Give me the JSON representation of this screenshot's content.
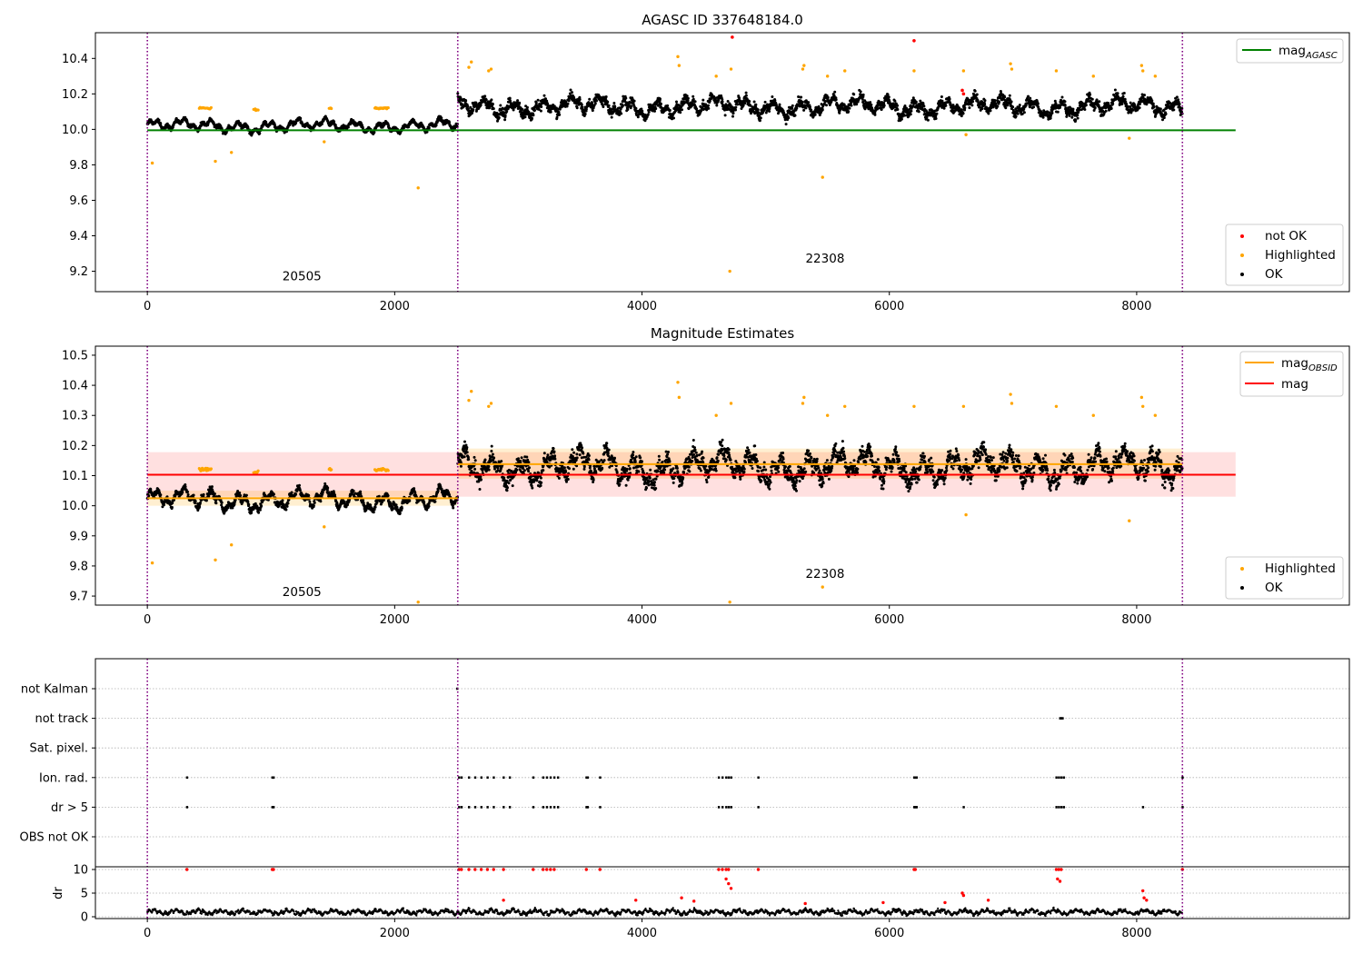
{
  "chart_data": [
    {
      "type": "scatter",
      "title": "AGASC ID 337648184.0",
      "xlabel": "",
      "ylabel": "",
      "xlim": [
        -420,
        9720
      ],
      "ylim": [
        9.085,
        10.545
      ],
      "xticks": [
        0,
        2000,
        4000,
        6000,
        8000
      ],
      "xtick_labels": [
        "0",
        "2000",
        "4000",
        "6000",
        "8000"
      ],
      "yticks": [
        9.2,
        9.4,
        9.6,
        9.8,
        10.0,
        10.2,
        10.4
      ],
      "ytick_labels": [
        "9.2",
        "9.4",
        "9.6",
        "9.8",
        "10.0",
        "10.2",
        "10.4"
      ],
      "obsid_boundaries": [
        0,
        2510,
        8370
      ],
      "obsid_labels": [
        {
          "text": "20505",
          "x": 1250,
          "y": 9.15
        },
        {
          "text": "22308",
          "x": 5480,
          "y": 9.25
        }
      ],
      "segments": [
        {
          "x0": 0,
          "x1": 2510,
          "level": 10.02,
          "amp": 0.04,
          "noise": 0.012
        },
        {
          "x0": 2510,
          "x1": 8370,
          "level": 10.13,
          "amp": 0.06,
          "noise": 0.03
        }
      ],
      "reference_lines": [
        {
          "name": "mag_AGASC",
          "value": 9.995,
          "x0": 0,
          "x1": 8800,
          "color": "#008000"
        }
      ],
      "legend_upper": [
        {
          "label": "mag",
          "sub": "AGASC",
          "color": "#008000",
          "kind": "line"
        }
      ],
      "legend_lower": [
        {
          "label": "not OK",
          "color": "#ff0000",
          "kind": "dot"
        },
        {
          "label": "Highlighted",
          "color": "#ffa500",
          "kind": "dot"
        },
        {
          "label": "OK",
          "color": "#000000",
          "kind": "dot"
        }
      ],
      "highlighted_points": [
        [
          40,
          9.81
        ],
        [
          550,
          9.82
        ],
        [
          680,
          9.87
        ],
        [
          2190,
          9.67
        ],
        [
          1430,
          9.93
        ],
        [
          4710,
          9.2
        ],
        [
          5460,
          9.73
        ],
        [
          6620,
          9.97
        ],
        [
          7940,
          9.95
        ],
        [
          2600,
          10.35
        ],
        [
          2620,
          10.38
        ],
        [
          2760,
          10.33
        ],
        [
          2780,
          10.34
        ],
        [
          4290,
          10.41
        ],
        [
          4300,
          10.36
        ],
        [
          4720,
          10.34
        ],
        [
          4600,
          10.3
        ],
        [
          5300,
          10.34
        ],
        [
          5310,
          10.36
        ],
        [
          5500,
          10.3
        ],
        [
          5640,
          10.33
        ],
        [
          6200,
          10.33
        ],
        [
          6600,
          10.33
        ],
        [
          6980,
          10.37
        ],
        [
          6990,
          10.34
        ],
        [
          7350,
          10.33
        ],
        [
          7650,
          10.3
        ],
        [
          8040,
          10.36
        ],
        [
          8050,
          10.33
        ],
        [
          8150,
          10.3
        ]
      ],
      "highlighted_clusters": [
        [
          420,
          520,
          10.12
        ],
        [
          860,
          900,
          10.11
        ],
        [
          1470,
          1490,
          10.12
        ],
        [
          1840,
          1950,
          10.12
        ]
      ],
      "notok_points": [
        [
          4730,
          10.52
        ],
        [
          6200,
          10.5
        ],
        [
          6590,
          10.22
        ],
        [
          6600,
          10.2
        ]
      ]
    },
    {
      "type": "scatter",
      "title": "Magnitude Estimates",
      "xlabel": "",
      "ylabel": "",
      "xlim": [
        -420,
        9720
      ],
      "ylim": [
        9.67,
        10.53
      ],
      "xticks": [
        0,
        2000,
        4000,
        6000,
        8000
      ],
      "xtick_labels": [
        "0",
        "2000",
        "4000",
        "6000",
        "8000"
      ],
      "yticks": [
        9.7,
        9.8,
        9.9,
        10.0,
        10.1,
        10.2,
        10.3,
        10.4,
        10.5
      ],
      "ytick_labels": [
        "9.7",
        "9.8",
        "9.9",
        "10.0",
        "10.1",
        "10.2",
        "10.3",
        "10.4",
        "10.5"
      ],
      "obsid_boundaries": [
        0,
        2510,
        8370
      ],
      "obsid_labels": [
        {
          "text": "20505",
          "x": 1250,
          "y": 9.7
        },
        {
          "text": "22308",
          "x": 5480,
          "y": 9.76
        }
      ],
      "segments": [
        {
          "x0": 0,
          "x1": 2510,
          "level": 10.02,
          "amp": 0.04,
          "noise": 0.012
        },
        {
          "x0": 2510,
          "x1": 8370,
          "level": 10.13,
          "amp": 0.06,
          "noise": 0.03
        }
      ],
      "mag_obsid": [
        {
          "x0": 0,
          "x1": 2510,
          "value": 10.025,
          "band": [
            10.0,
            10.05
          ]
        },
        {
          "x0": 2510,
          "x1": 8370,
          "value": 10.138,
          "band": [
            10.09,
            10.19
          ]
        }
      ],
      "mag": {
        "value": 10.103,
        "band": [
          10.03,
          10.178
        ],
        "x0": 0,
        "x1": 8800
      },
      "legend_upper": [
        {
          "label": "mag",
          "sub": "OBSID",
          "color": "#ffa500",
          "kind": "line"
        },
        {
          "label": "mag",
          "sub": "",
          "color": "#ff0000",
          "kind": "line"
        }
      ],
      "legend_lower": [
        {
          "label": "Highlighted",
          "color": "#ffa500",
          "kind": "dot"
        },
        {
          "label": "OK",
          "color": "#000000",
          "kind": "dot"
        }
      ],
      "highlighted_points": [
        [
          40,
          9.81
        ],
        [
          550,
          9.82
        ],
        [
          680,
          9.87
        ],
        [
          1430,
          9.93
        ],
        [
          2190,
          9.68
        ],
        [
          4710,
          9.68
        ],
        [
          5460,
          9.73
        ],
        [
          6620,
          9.97
        ],
        [
          7940,
          9.95
        ],
        [
          2600,
          10.35
        ],
        [
          2620,
          10.38
        ],
        [
          2760,
          10.33
        ],
        [
          2780,
          10.34
        ],
        [
          4290,
          10.41
        ],
        [
          4300,
          10.36
        ],
        [
          4720,
          10.34
        ],
        [
          4600,
          10.3
        ],
        [
          5300,
          10.34
        ],
        [
          5310,
          10.36
        ],
        [
          5500,
          10.3
        ],
        [
          5640,
          10.33
        ],
        [
          6200,
          10.33
        ],
        [
          6600,
          10.33
        ],
        [
          6980,
          10.37
        ],
        [
          6990,
          10.34
        ],
        [
          7350,
          10.33
        ],
        [
          7650,
          10.3
        ],
        [
          8040,
          10.36
        ],
        [
          8050,
          10.33
        ],
        [
          8150,
          10.3
        ]
      ],
      "highlighted_clusters": [
        [
          420,
          520,
          10.12
        ],
        [
          860,
          900,
          10.11
        ],
        [
          1470,
          1490,
          10.12
        ],
        [
          1840,
          1950,
          10.12
        ]
      ]
    },
    {
      "type": "scatter",
      "title": "",
      "xlabel": "",
      "ylabel": "",
      "xlim": [
        -420,
        9720
      ],
      "xticks": [
        0,
        2000,
        4000,
        6000,
        8000
      ],
      "xtick_labels": [
        "0",
        "2000",
        "4000",
        "6000",
        "8000"
      ],
      "obsid_boundaries": [
        0,
        2510,
        8370
      ],
      "flag_rows": [
        "not Kalman",
        "not track",
        "Sat. pixel.",
        "Ion. rad.",
        "dr > 5",
        "OBS not OK"
      ],
      "flags": {
        "not Kalman": [
          2505
        ],
        "not track": [
          7380,
          7390,
          7400
        ],
        "Sat. pixel.": [],
        "Ion. rad.": [
          320,
          1010,
          1020,
          2520,
          2540,
          2600,
          2650,
          2700,
          2750,
          2800,
          2880,
          2930,
          3120,
          3200,
          3230,
          3260,
          3290,
          3320,
          3550,
          3560,
          3660,
          4620,
          4650,
          4680,
          4700,
          4720,
          4940,
          6200,
          6210,
          6220,
          7350,
          7370,
          7390,
          7410,
          8370
        ],
        "dr > 5": [
          320,
          1010,
          1020,
          2520,
          2540,
          2600,
          2650,
          2700,
          2750,
          2800,
          2880,
          2930,
          3120,
          3200,
          3230,
          3260,
          3290,
          3320,
          3550,
          3560,
          3660,
          4620,
          4650,
          4680,
          4700,
          4720,
          4940,
          6200,
          6210,
          6220,
          6600,
          7350,
          7370,
          7390,
          7410,
          8050,
          8370
        ],
        "OBS not OK": []
      },
      "dr_ylabel": "dr",
      "dr_ylim": [
        0,
        10
      ],
      "dr_yticks": [
        0,
        5,
        10
      ],
      "dr_ytick_labels": [
        "0",
        "5",
        "10"
      ],
      "dr_high_points": [
        [
          320,
          10
        ],
        [
          1010,
          10
        ],
        [
          1020,
          10
        ],
        [
          2520,
          10
        ],
        [
          2540,
          10
        ],
        [
          2600,
          10
        ],
        [
          2650,
          10
        ],
        [
          2700,
          10
        ],
        [
          2750,
          10
        ],
        [
          2800,
          10
        ],
        [
          2880,
          10
        ],
        [
          3120,
          10
        ],
        [
          3200,
          10
        ],
        [
          3230,
          10
        ],
        [
          3260,
          10
        ],
        [
          3290,
          10
        ],
        [
          3550,
          10
        ],
        [
          3660,
          10
        ],
        [
          4620,
          10
        ],
        [
          4650,
          10
        ],
        [
          4680,
          10
        ],
        [
          4700,
          10
        ],
        [
          4940,
          10
        ],
        [
          6200,
          10
        ],
        [
          6210,
          10
        ],
        [
          7350,
          10
        ],
        [
          7370,
          10
        ],
        [
          7390,
          10
        ],
        [
          8370,
          10
        ],
        [
          4680,
          8
        ],
        [
          4700,
          7
        ],
        [
          4720,
          6
        ],
        [
          6590,
          5
        ],
        [
          6600,
          4.5
        ],
        [
          7360,
          8
        ],
        [
          7380,
          7.5
        ],
        [
          8050,
          5.5
        ],
        [
          8060,
          4
        ],
        [
          8080,
          3.5
        ],
        [
          3950,
          3.5
        ],
        [
          4320,
          4
        ],
        [
          4420,
          3.3
        ],
        [
          5320,
          2.8
        ],
        [
          2880,
          3.5
        ],
        [
          5950,
          3
        ],
        [
          6450,
          3
        ],
        [
          6800,
          3.5
        ]
      ]
    }
  ]
}
